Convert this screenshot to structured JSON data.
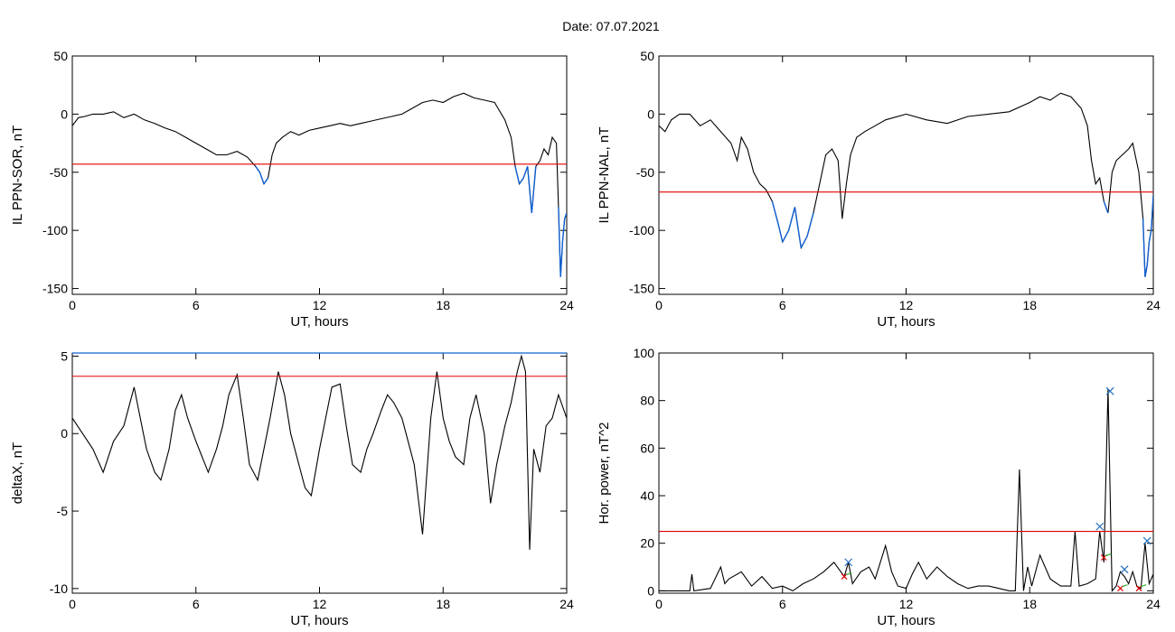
{
  "title": "Date:  07.07.2021",
  "colors": {
    "trace": "#000000",
    "threshold": "#e00000",
    "below": "#1060d0",
    "peak_x": "#2070c0",
    "min_x": "#e00000",
    "min_mark": "#30b030"
  },
  "chart_data": [
    {
      "type": "line",
      "ylabel": "IL PPN-SOR, nT",
      "xlabel": "UT, hours",
      "xlim": [
        0,
        24
      ],
      "ylim": [
        -155,
        50
      ],
      "xticks": [
        "0",
        "6",
        "12",
        "18",
        "24"
      ],
      "yticks": [
        "50",
        "0",
        "-50",
        "-100",
        "-150"
      ],
      "ytick_values": [
        50,
        0,
        -50,
        -100,
        -150
      ],
      "threshold": -43,
      "series": [
        {
          "x": [
            0,
            0.3,
            0.6,
            1.0,
            1.5,
            2.0,
            2.5,
            3.0,
            3.5,
            4.0,
            4.5,
            5.0,
            5.5,
            6.0,
            6.5,
            7.0,
            7.5,
            8.0,
            8.5,
            8.9,
            9.1,
            9.3,
            9.5,
            9.7,
            9.9,
            10.2,
            10.6,
            11.0,
            11.5,
            12.0,
            12.5,
            13.0,
            13.5,
            14.0,
            14.5,
            15.0,
            15.5,
            16.0,
            16.5,
            17.0,
            17.5,
            18.0,
            18.5,
            19.0,
            19.5,
            20.0,
            20.5,
            21.0,
            21.3,
            21.5,
            21.7,
            21.9,
            22.1,
            22.3,
            22.5,
            22.7,
            22.9,
            23.1,
            23.3,
            23.5,
            23.6,
            23.7,
            23.8,
            23.9,
            24.0
          ],
          "y": [
            -10,
            -3,
            -2,
            0,
            0,
            2,
            -3,
            0,
            -5,
            -8,
            -12,
            -15,
            -20,
            -25,
            -30,
            -35,
            -35,
            -32,
            -37,
            -45,
            -50,
            -60,
            -55,
            -35,
            -25,
            -20,
            -15,
            -18,
            -14,
            -12,
            -10,
            -8,
            -10,
            -8,
            -6,
            -4,
            -2,
            0,
            5,
            10,
            12,
            10,
            15,
            18,
            14,
            12,
            10,
            -5,
            -20,
            -45,
            -60,
            -55,
            -45,
            -85,
            -45,
            -40,
            -30,
            -35,
            -20,
            -25,
            -80,
            -140,
            -110,
            -90,
            -85
          ]
        }
      ]
    },
    {
      "type": "line",
      "ylabel": "IL PPN-NAL, nT",
      "xlabel": "UT, hours",
      "xlim": [
        0,
        24
      ],
      "ylim": [
        -155,
        50
      ],
      "xticks": [
        "0",
        "6",
        "12",
        "18",
        "24"
      ],
      "yticks": [
        "50",
        "0",
        "-50",
        "-100",
        "-150"
      ],
      "ytick_values": [
        50,
        0,
        -50,
        -100,
        -150
      ],
      "threshold": -67,
      "series": [
        {
          "x": [
            0,
            0.3,
            0.6,
            1.0,
            1.5,
            2.0,
            2.5,
            3.0,
            3.5,
            3.8,
            4.0,
            4.3,
            4.6,
            4.9,
            5.2,
            5.5,
            5.8,
            6.0,
            6.3,
            6.6,
            6.9,
            7.2,
            7.5,
            7.8,
            8.1,
            8.4,
            8.7,
            8.9,
            9.1,
            9.3,
            9.6,
            10.0,
            10.5,
            11.0,
            12.0,
            13.0,
            14.0,
            15.0,
            16.0,
            17.0,
            18.0,
            18.5,
            19.0,
            19.5,
            20.0,
            20.5,
            20.8,
            21.0,
            21.2,
            21.4,
            21.6,
            21.8,
            22.0,
            22.2,
            22.5,
            22.8,
            23.0,
            23.3,
            23.5,
            23.6,
            23.7,
            23.8,
            23.9,
            24.0
          ],
          "y": [
            -10,
            -15,
            -5,
            0,
            0,
            -10,
            -5,
            -15,
            -25,
            -40,
            -20,
            -30,
            -50,
            -60,
            -65,
            -75,
            -95,
            -110,
            -100,
            -80,
            -115,
            -105,
            -85,
            -60,
            -35,
            -30,
            -40,
            -90,
            -60,
            -35,
            -20,
            -15,
            -10,
            -5,
            0,
            -5,
            -8,
            -2,
            0,
            2,
            10,
            15,
            12,
            18,
            15,
            5,
            -10,
            -40,
            -60,
            -55,
            -75,
            -85,
            -50,
            -40,
            -35,
            -30,
            -25,
            -50,
            -90,
            -140,
            -130,
            -110,
            -100,
            -70
          ]
        }
      ]
    },
    {
      "type": "line",
      "ylabel": "deltaX, nT",
      "xlabel": "UT, hours",
      "xlim": [
        0,
        24
      ],
      "ylim": [
        -10.3,
        5.2
      ],
      "xticks": [
        "0",
        "6",
        "12",
        "18",
        "24"
      ],
      "yticks": [
        "5",
        "0",
        "-5",
        "-10"
      ],
      "ytick_values": [
        5,
        0,
        -5,
        -10
      ],
      "threshold": 3.7,
      "series": [
        {
          "x": [
            0,
            0.5,
            1.0,
            1.5,
            2.0,
            2.5,
            3.0,
            3.3,
            3.6,
            4.0,
            4.3,
            4.7,
            5.0,
            5.3,
            5.6,
            6.0,
            6.3,
            6.6,
            7.0,
            7.3,
            7.6,
            8.0,
            8.3,
            8.6,
            9.0,
            9.3,
            9.6,
            10.0,
            10.3,
            10.6,
            11.0,
            11.3,
            11.6,
            12.0,
            12.3,
            12.6,
            13.0,
            13.3,
            13.6,
            14.0,
            14.3,
            14.6,
            15.0,
            15.3,
            15.6,
            16.0,
            16.3,
            16.6,
            17.0,
            17.4,
            17.7,
            18.0,
            18.3,
            18.6,
            19.0,
            19.3,
            19.6,
            20.0,
            20.3,
            20.6,
            21.0,
            21.3,
            21.6,
            21.8,
            22.0,
            22.2,
            22.4,
            22.7,
            23.0,
            23.3,
            23.6,
            24.0
          ],
          "y": [
            1,
            0,
            -1,
            -2.5,
            -0.5,
            0.5,
            3,
            1,
            -1,
            -2.5,
            -3,
            -1,
            1.5,
            2.5,
            1,
            -0.5,
            -1.5,
            -2.5,
            -1,
            0.5,
            2.5,
            3.8,
            1,
            -2,
            -3,
            -1,
            1,
            4,
            2.5,
            0,
            -2,
            -3.5,
            -4,
            -1,
            1,
            3,
            3.2,
            0.5,
            -2,
            -2.5,
            -1,
            0,
            1.5,
            2.5,
            2,
            1,
            -0.5,
            -2,
            -6.5,
            1,
            4,
            1,
            -0.5,
            -1.5,
            -2,
            1,
            2.5,
            0,
            -4.5,
            -2,
            0.5,
            2,
            4,
            5,
            4,
            -7.5,
            -1,
            -2.5,
            0.5,
            1,
            2.5,
            1
          ]
        }
      ]
    },
    {
      "type": "line",
      "ylabel": "Hor. power, nT^2",
      "xlabel": "UT, hours",
      "xlim": [
        0,
        24
      ],
      "ylim": [
        -1,
        100
      ],
      "xticks": [
        "0",
        "6",
        "12",
        "18",
        "24"
      ],
      "yticks": [
        "100",
        "80",
        "60",
        "40",
        "20",
        "0"
      ],
      "ytick_values": [
        100,
        80,
        60,
        40,
        20,
        0
      ],
      "threshold": 25,
      "series": [
        {
          "x": [
            0,
            1.5,
            1.6,
            1.7,
            2.5,
            3.0,
            3.2,
            3.4,
            4.0,
            4.5,
            5.0,
            5.5,
            6.0,
            6.5,
            7.0,
            7.5,
            8.0,
            8.5,
            9.0,
            9.2,
            9.4,
            9.8,
            10.2,
            10.5,
            11.0,
            11.3,
            11.6,
            12.0,
            12.3,
            12.6,
            13.0,
            13.5,
            14.0,
            14.5,
            15.0,
            15.5,
            16.0,
            16.5,
            17.0,
            17.3,
            17.5,
            17.7,
            17.9,
            18.1,
            18.5,
            19.0,
            19.5,
            20.0,
            20.2,
            20.4,
            20.8,
            21.2,
            21.4,
            21.6,
            21.8,
            22.0,
            22.2,
            22.4,
            22.6,
            22.8,
            23.0,
            23.2,
            23.4,
            23.6,
            23.8,
            24.0
          ],
          "y": [
            0,
            0,
            7,
            0,
            1,
            10,
            3,
            5,
            8,
            2,
            6,
            1,
            2,
            0,
            3,
            5,
            8,
            12,
            6,
            12,
            3,
            8,
            10,
            5,
            19,
            8,
            2,
            1,
            7,
            12,
            5,
            10,
            6,
            3,
            1,
            2,
            2,
            1,
            0,
            0,
            51,
            0,
            10,
            2,
            15,
            5,
            2,
            2,
            25,
            2,
            3,
            5,
            25,
            12,
            85,
            0,
            2,
            8,
            6,
            3,
            8,
            2,
            1,
            20,
            3,
            7
          ]
        }
      ],
      "peaks": [
        [
          9.2,
          12
        ],
        [
          21.4,
          27
        ],
        [
          21.9,
          84
        ],
        [
          22.6,
          9
        ],
        [
          23.7,
          21
        ]
      ],
      "minima": [
        [
          9.0,
          6
        ],
        [
          21.6,
          14
        ],
        [
          22.4,
          1
        ],
        [
          23.3,
          1
        ]
      ]
    }
  ]
}
